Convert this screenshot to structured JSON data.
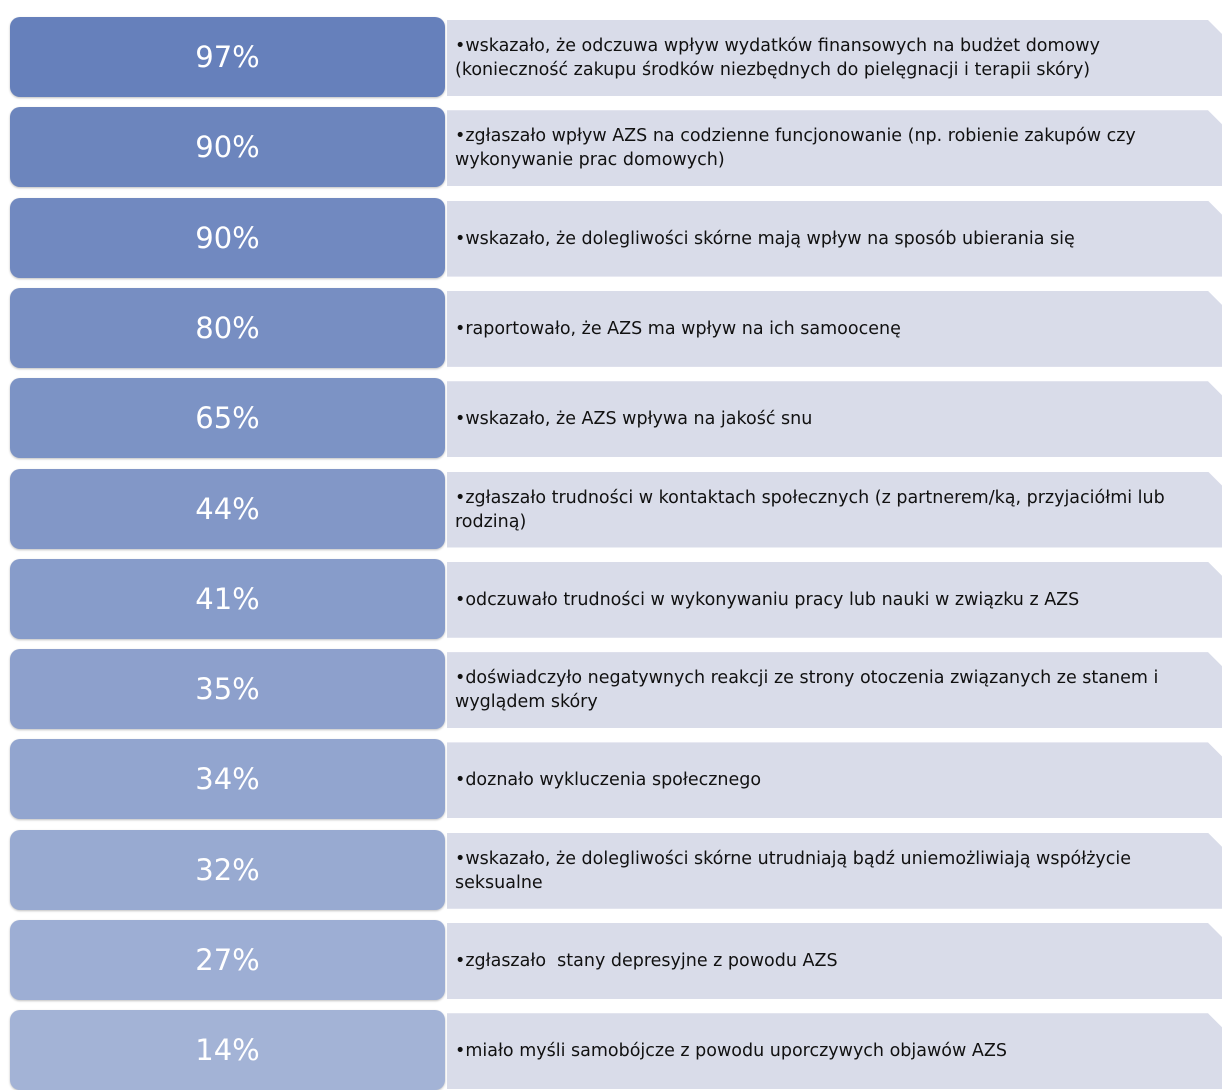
{
  "items": [
    {
      "label": "97%",
      "text": "•wskazało, że odczuwa wpływ wydatków finansowych na budżet domowy (konieczność zakupu środków niezbędnych do pielęgnacji i terapii skóry)"
    },
    {
      "label": "90%",
      "text": "•zgłaszało wpływ AZS na codzienne funcjonowanie (np. robienie zakupów czy wykonywanie prac domowych)"
    },
    {
      "label": "90%",
      "text": "•wskazało, że dolegliwości skórne mają wpływ na sposób ubierania się"
    },
    {
      "label": "80%",
      "text": "•raportowało, że AZS ma wpływ na ich samoocenę"
    },
    {
      "label": "65%",
      "text": "•wskazało, że AZS wpływa na jakość snu"
    },
    {
      "label": "44%",
      "text": "•zgłaszało trudności w kontaktach społecznych (z partnerem/ką, przyjaciółmi lub rodziną)"
    },
    {
      "label": "41%",
      "text": "•odczuwało trudności w wykonywaniu pracy lub nauki w związku z AZS"
    },
    {
      "label": "35%",
      "text": "•doświadczyło negatywnych reakcji ze strony otoczenia związanych ze stanem i wyglądem skóry"
    },
    {
      "label": "34%",
      "text": "•doznało wykluczenia społecznego"
    },
    {
      "label": "32%",
      "text": "•wskazało, że dolegliwości skórne utrudniają bądź uniemożliwiają współżycie seksualne"
    },
    {
      "label": "27%",
      "text": "•zgłaszało  stany depresyjne z powodu AZS"
    },
    {
      "label": "14%",
      "text": "•miało myśli samobójcze z powodu uporczywych objawów AZS"
    }
  ]
}
